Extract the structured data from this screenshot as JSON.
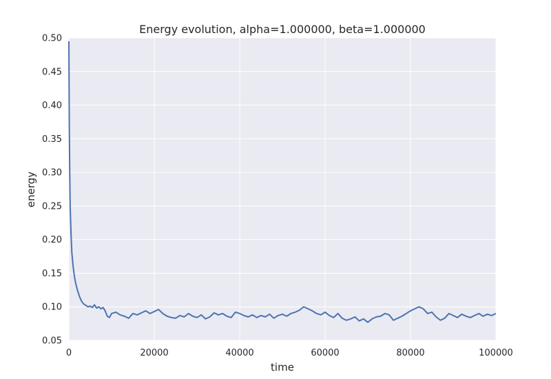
{
  "chart_data": {
    "type": "line",
    "title": "Energy evolution, alpha=1.000000, beta=1.000000",
    "xlabel": "time",
    "ylabel": "energy",
    "xlim": [
      0,
      100000
    ],
    "ylim": [
      0.05,
      0.5
    ],
    "grid": true,
    "x_ticks": [
      "0",
      "20000",
      "40000",
      "60000",
      "80000",
      "100000"
    ],
    "y_ticks": [
      "0.05",
      "0.10",
      "0.15",
      "0.20",
      "0.25",
      "0.30",
      "0.35",
      "0.40",
      "0.45",
      "0.50"
    ],
    "colors": {
      "line": "#4c72b0",
      "plot_bg": "#eaeaf2",
      "grid": "#ffffff"
    },
    "series": [
      {
        "x": [
          0,
          100,
          200,
          300,
          500,
          700,
          1000,
          1300,
          1600,
          2000,
          2500,
          3000,
          3500,
          4000,
          4500,
          5000,
          5500,
          6000,
          6500,
          7000,
          7500,
          8000,
          8500,
          9000,
          9500,
          10000,
          11000,
          12000,
          13000,
          14000,
          15000,
          16000,
          17000,
          18000,
          19000,
          20000,
          21000,
          22000,
          23000,
          24000,
          25000,
          26000,
          27000,
          28000,
          29000,
          30000,
          31000,
          32000,
          33000,
          34000,
          35000,
          36000,
          37000,
          38000,
          39000,
          40000,
          41000,
          42000,
          43000,
          44000,
          45000,
          46000,
          47000,
          48000,
          49000,
          50000,
          51000,
          52000,
          53000,
          54000,
          55000,
          56000,
          57000,
          58000,
          59000,
          60000,
          61000,
          62000,
          63000,
          64000,
          65000,
          66000,
          67000,
          68000,
          69000,
          70000,
          71000,
          72000,
          73000,
          74000,
          75000,
          76000,
          77000,
          78000,
          79000,
          80000,
          81000,
          82000,
          83000,
          84000,
          85000,
          86000,
          87000,
          88000,
          89000,
          90000,
          91000,
          92000,
          93000,
          94000,
          95000,
          96000,
          97000,
          98000,
          99000,
          100000
        ],
        "y": [
          0.495,
          0.37,
          0.3,
          0.25,
          0.21,
          0.18,
          0.16,
          0.145,
          0.135,
          0.125,
          0.115,
          0.108,
          0.104,
          0.102,
          0.1,
          0.101,
          0.099,
          0.103,
          0.098,
          0.1,
          0.097,
          0.099,
          0.094,
          0.086,
          0.084,
          0.09,
          0.092,
          0.088,
          0.086,
          0.083,
          0.09,
          0.088,
          0.091,
          0.094,
          0.09,
          0.093,
          0.096,
          0.09,
          0.086,
          0.084,
          0.083,
          0.087,
          0.085,
          0.09,
          0.086,
          0.084,
          0.088,
          0.082,
          0.085,
          0.091,
          0.088,
          0.09,
          0.086,
          0.084,
          0.092,
          0.09,
          0.087,
          0.085,
          0.088,
          0.084,
          0.087,
          0.085,
          0.089,
          0.083,
          0.087,
          0.089,
          0.086,
          0.09,
          0.092,
          0.095,
          0.1,
          0.097,
          0.094,
          0.09,
          0.088,
          0.092,
          0.087,
          0.084,
          0.09,
          0.083,
          0.08,
          0.082,
          0.085,
          0.079,
          0.082,
          0.077,
          0.082,
          0.085,
          0.086,
          0.09,
          0.088,
          0.08,
          0.083,
          0.086,
          0.09,
          0.094,
          0.097,
          0.1,
          0.097,
          0.09,
          0.092,
          0.085,
          0.08,
          0.083,
          0.09,
          0.087,
          0.084,
          0.089,
          0.086,
          0.084,
          0.087,
          0.09,
          0.086,
          0.089,
          0.087,
          0.09
        ]
      }
    ]
  }
}
